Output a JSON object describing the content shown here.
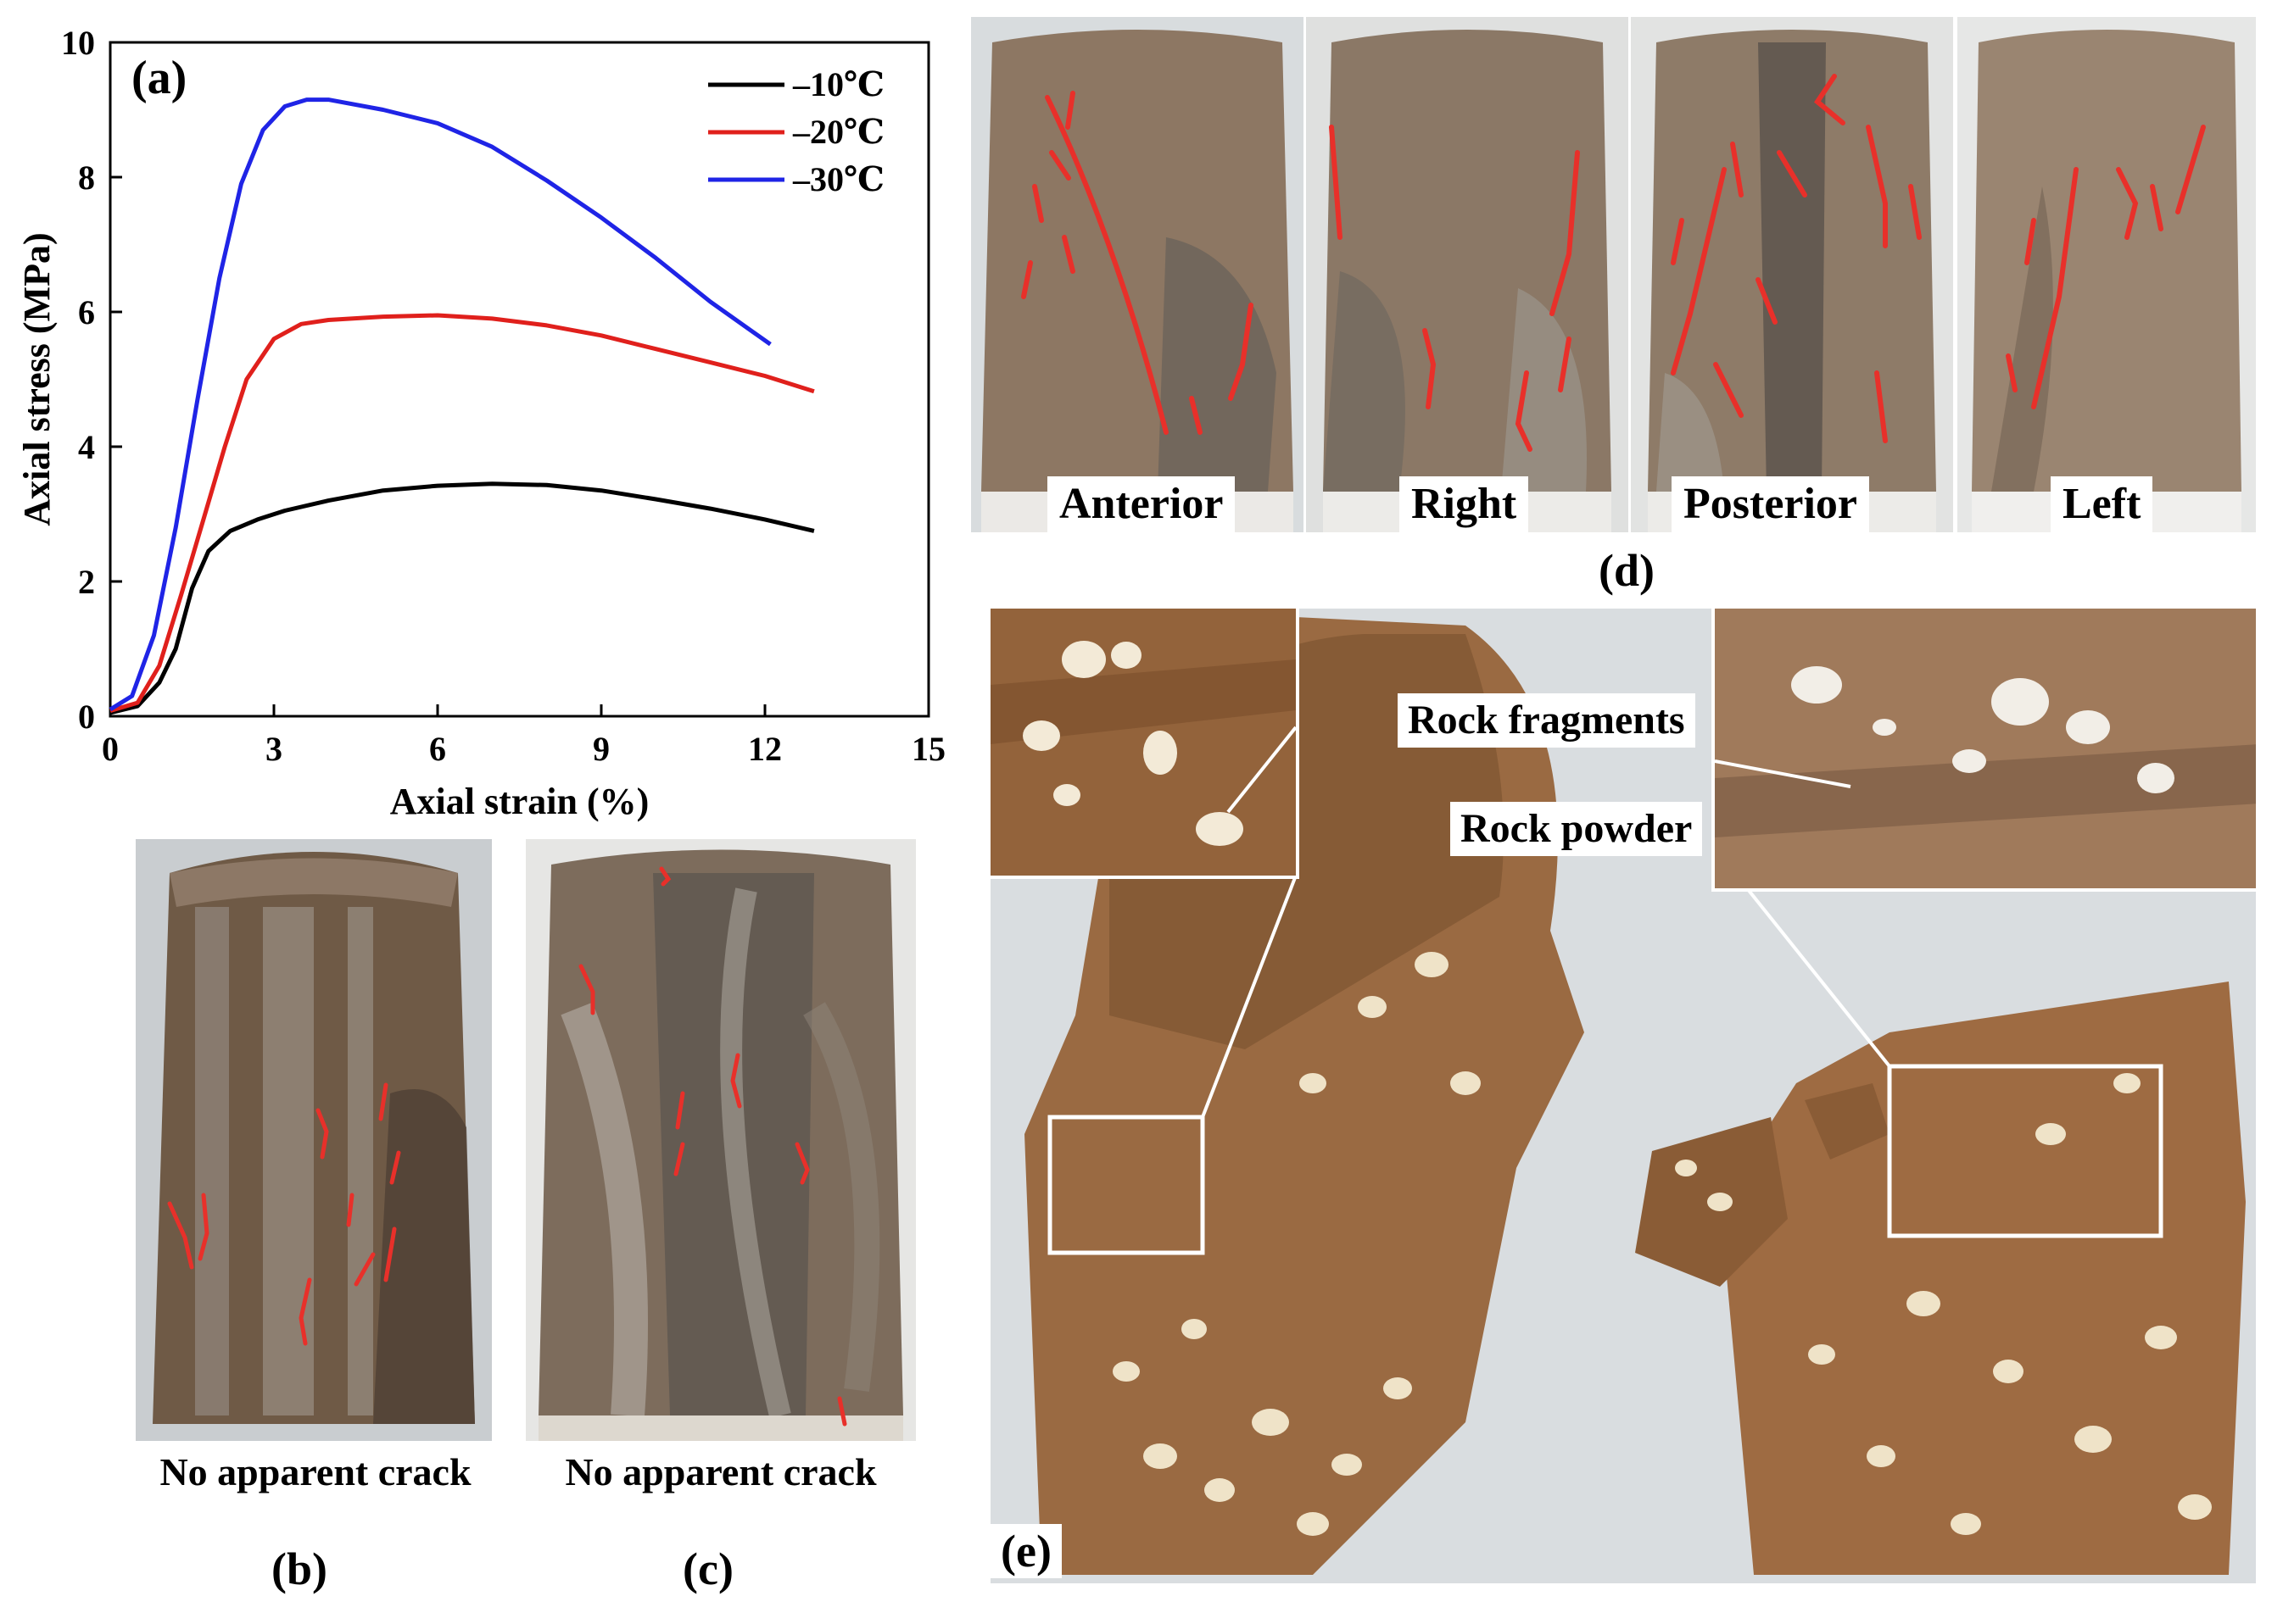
{
  "chart_data": {
    "type": "line",
    "panel_label": "(a)",
    "xlabel": "Axial strain (%)",
    "ylabel": "Axial stress (MPa)",
    "xlim": [
      0,
      15
    ],
    "ylim": [
      0,
      10
    ],
    "xticks": [
      0,
      3,
      6,
      9,
      12,
      15
    ],
    "yticks": [
      0,
      2,
      4,
      6,
      8,
      10
    ],
    "grid": false,
    "legend": "top-right",
    "series": [
      {
        "name": "–10℃",
        "color": "#000000",
        "x": [
          0,
          0.5,
          0.9,
          1.2,
          1.5,
          1.8,
          2.2,
          2.7,
          3.2,
          4,
          5,
          6,
          7,
          8,
          9,
          10,
          11,
          12,
          12.9
        ],
        "y": [
          0.05,
          0.15,
          0.5,
          1.0,
          1.9,
          2.45,
          2.75,
          2.92,
          3.05,
          3.2,
          3.35,
          3.42,
          3.45,
          3.43,
          3.35,
          3.22,
          3.08,
          2.92,
          2.75
        ]
      },
      {
        "name": "–20℃",
        "color": "#e0201c",
        "x": [
          0,
          0.5,
          0.9,
          1.3,
          1.7,
          2.1,
          2.5,
          3.0,
          3.5,
          4,
          5,
          6,
          7,
          8,
          9,
          10,
          11,
          12,
          12.9
        ],
        "y": [
          0.08,
          0.2,
          0.75,
          1.8,
          2.9,
          4.0,
          5.0,
          5.6,
          5.82,
          5.88,
          5.93,
          5.95,
          5.9,
          5.8,
          5.65,
          5.45,
          5.25,
          5.05,
          4.82
        ]
      },
      {
        "name": "–30℃",
        "color": "#1f24e6",
        "x": [
          0,
          0.4,
          0.8,
          1.2,
          1.6,
          2.0,
          2.4,
          2.8,
          3.2,
          3.6,
          4.0,
          5,
          6,
          7,
          8,
          9,
          10,
          11,
          12.1
        ],
        "y": [
          0.1,
          0.3,
          1.2,
          2.8,
          4.7,
          6.5,
          7.9,
          8.7,
          9.05,
          9.15,
          9.15,
          9.0,
          8.8,
          8.45,
          7.95,
          7.4,
          6.8,
          6.15,
          5.52
        ]
      }
    ]
  },
  "panels": {
    "b": {
      "label": "(b)",
      "caption": "No apparent crack"
    },
    "c": {
      "label": "(c)",
      "caption": "No apparent crack"
    },
    "d": {
      "label": "(d)",
      "views": [
        "Anterior",
        "Right",
        "Posterior",
        "Left"
      ]
    },
    "e": {
      "label": "(e)",
      "callouts": {
        "fragments": "Rock fragments",
        "powder": "Rock powder"
      }
    }
  },
  "colors": {
    "soil": "#8a6a4c",
    "soil_dark": "#5e4a38",
    "wet_soil": "#9b6b42",
    "crack": "#e8302a",
    "background_photo": "#d9dde0"
  }
}
